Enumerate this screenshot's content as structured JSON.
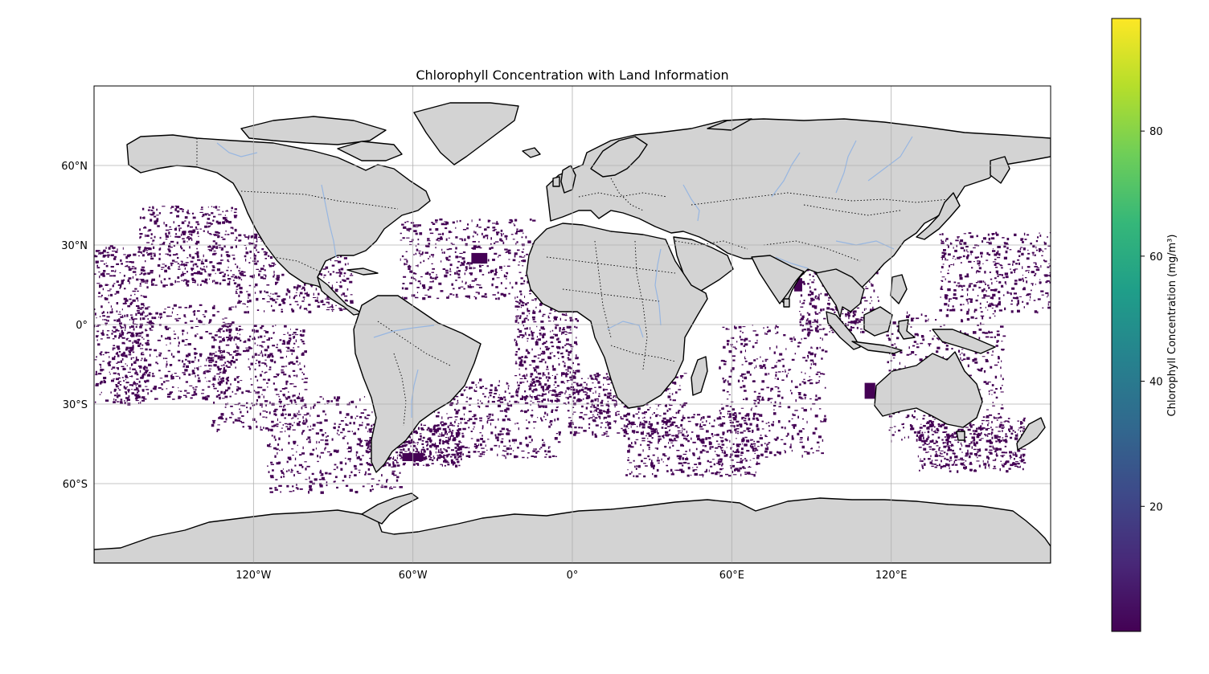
{
  "map": {
    "title": "Chlorophyll Concentration with Land Information",
    "projection": "PlateCarree",
    "extent": {
      "lon": [
        -180,
        180
      ],
      "lat": [
        -90,
        90
      ]
    },
    "gridlines": true,
    "lon_ticks": [
      {
        "value": -120,
        "label": "120°W"
      },
      {
        "value": -60,
        "label": "60°W"
      },
      {
        "value": 0,
        "label": "0°"
      },
      {
        "value": 60,
        "label": "60°E"
      },
      {
        "value": 120,
        "label": "120°E"
      }
    ],
    "lat_ticks": [
      {
        "value": 60,
        "label": "60°N"
      },
      {
        "value": 30,
        "label": "30°N"
      },
      {
        "value": 0,
        "label": "0°"
      },
      {
        "value": -30,
        "label": "30°S"
      },
      {
        "value": -60,
        "label": "60°S"
      }
    ],
    "layers": [
      "ocean-chlorophyll",
      "land",
      "coastlines",
      "borders",
      "rivers"
    ],
    "colors": {
      "land": "#d3d3d3",
      "coastline": "#000000",
      "border": "#000000",
      "river": "#97b6e1",
      "grid": "#b0b0b0",
      "chlorophyll_low": "#440154"
    }
  },
  "colorbar": {
    "label": "Chlorophyll Concentration (mg/m³)",
    "colormap": "viridis",
    "range": [
      0,
      98
    ],
    "ticks": [
      {
        "value": 20,
        "label": "20"
      },
      {
        "value": 40,
        "label": "40"
      },
      {
        "value": 60,
        "label": "60"
      },
      {
        "value": 80,
        "label": "80"
      }
    ],
    "stops": [
      "#440154",
      "#482878",
      "#3e4989",
      "#31688e",
      "#26828e",
      "#1f9e89",
      "#35b779",
      "#6ece58",
      "#b5de2b",
      "#fde725"
    ]
  }
}
